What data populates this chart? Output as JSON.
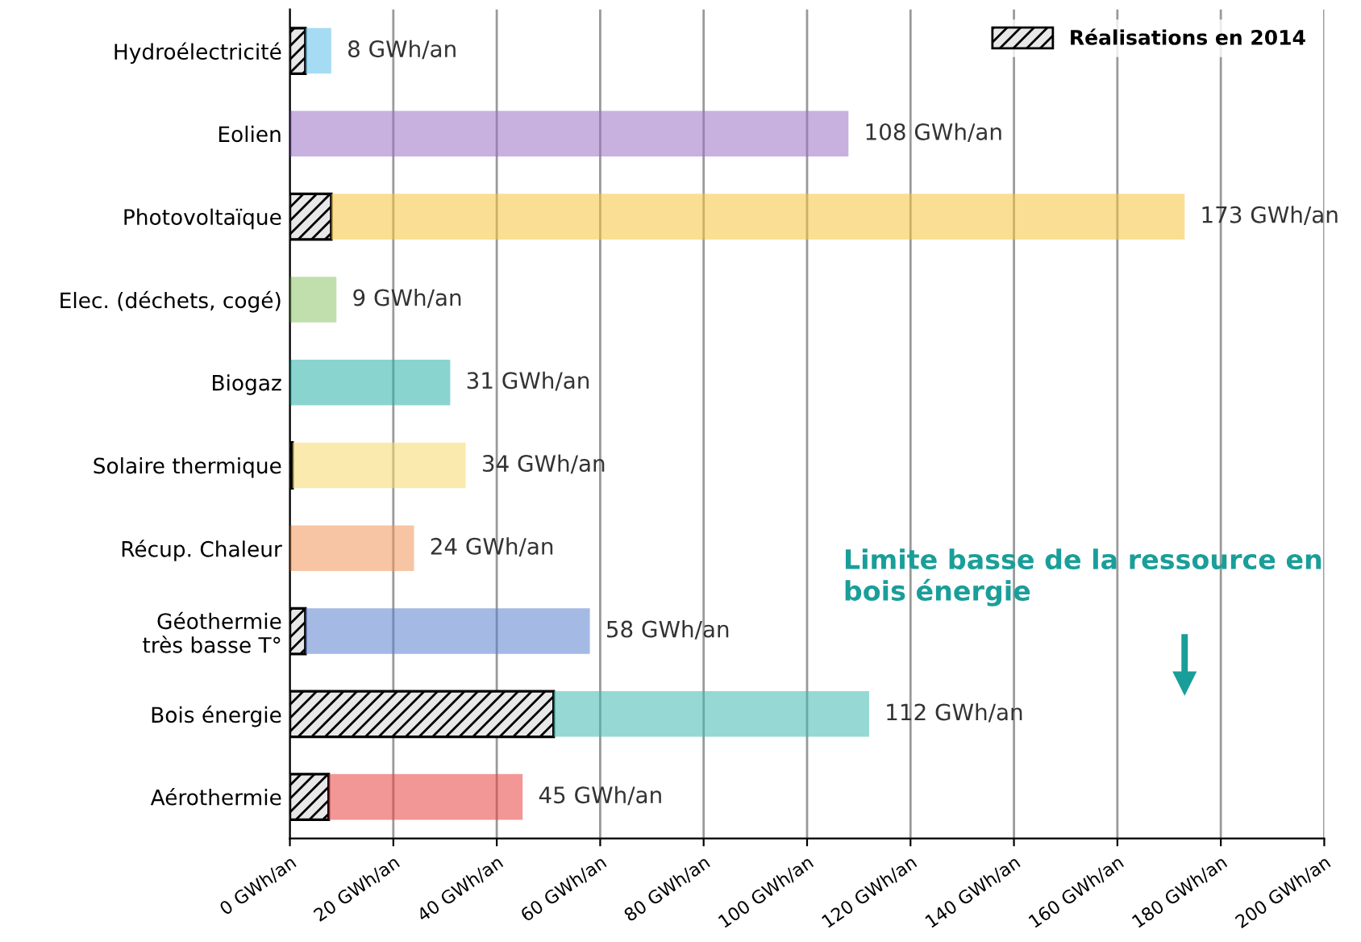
{
  "chart_data": {
    "type": "bar",
    "orientation": "horizontal",
    "stacked": true,
    "categories": [
      "Hydroélectricité",
      "Eolien",
      "Photovoltaïque",
      "Elec. (déchets, cogé)",
      "Biogaz",
      "Solaire thermique",
      "Récup. Chaleur",
      "Géothermie\ntrès basse T°",
      "Bois énergie",
      "Aérothermie"
    ],
    "series": [
      {
        "name": "Réalisations en 2014",
        "color": "#000000",
        "values": [
          3,
          0,
          8,
          0,
          0,
          0.5,
          0,
          3,
          51,
          7.5
        ]
      },
      {
        "colors": [
          "#5bc0eb",
          "#9b6fc4",
          "#f5c23a",
          "#8cc56a",
          "#2ab0a8",
          "#f8d86a",
          "#f0965a",
          "#5b7fd0",
          "#3fb8b0",
          "#e84040"
        ],
        "values": [
          5,
          108,
          165,
          9,
          31,
          33.5,
          24,
          55,
          61,
          37.5
        ]
      }
    ],
    "totals": [
      "8 GWh/an",
      "108 GWh/an",
      "173 GWh/an",
      "9 GWh/an",
      "31 GWh/an",
      "34 GWh/an",
      "24 GWh/an",
      "58 GWh/an",
      "112 GWh/an",
      "45 GWh/an"
    ],
    "xlim": [
      0,
      200
    ],
    "xticks": [
      {
        "value": 0,
        "label": "0 GWh/an"
      },
      {
        "value": 20,
        "label": "20 GWh/an"
      },
      {
        "value": 40,
        "label": "40 GWh/an"
      },
      {
        "value": 60,
        "label": "60 GWh/an"
      },
      {
        "value": 80,
        "label": "80 GWh/an"
      },
      {
        "value": 100,
        "label": "100 GWh/an"
      },
      {
        "value": 120,
        "label": "120 GWh/an"
      },
      {
        "value": 140,
        "label": "140 GWh/an"
      },
      {
        "value": 160,
        "label": "160 GWh/an"
      },
      {
        "value": 180,
        "label": "180 GWh/an"
      },
      {
        "value": 200,
        "label": "200 GWh/an"
      }
    ],
    "grid": "x",
    "legend": "top right",
    "annotations": [
      "Limite basse de la ressource en\nbois énergie"
    ]
  }
}
